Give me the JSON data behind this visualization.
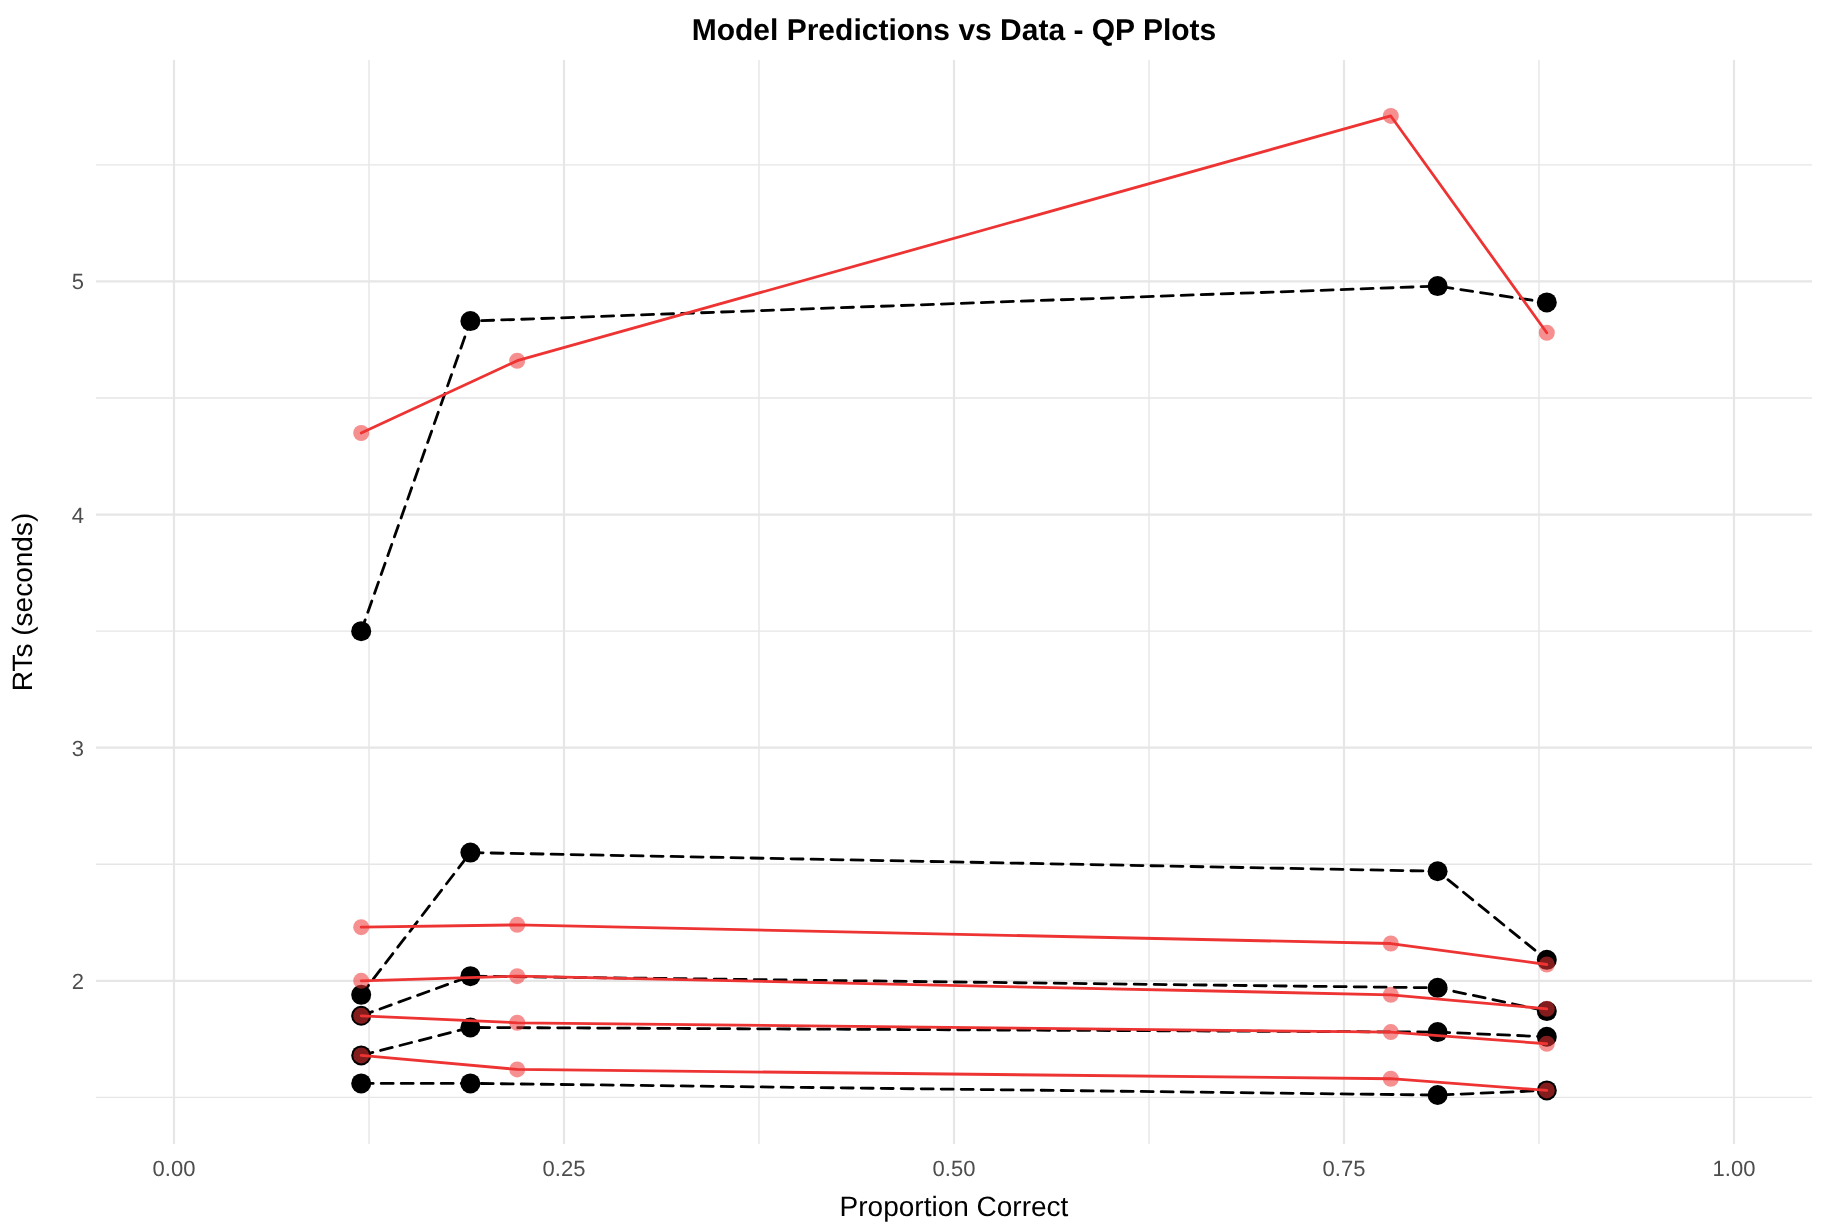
{
  "chart_data": {
    "type": "line",
    "title": "Model Predictions vs Data - QP Plots",
    "xlabel": "Proportion Correct",
    "ylabel": "RTs (seconds)",
    "xlim": [
      -0.05,
      1.05
    ],
    "xticks": [
      {
        "value": 0,
        "label": "0.00"
      },
      {
        "value": 0.125,
        "label": null
      },
      {
        "value": 0.25,
        "label": "0.25"
      },
      {
        "value": 0.375,
        "label": null
      },
      {
        "value": 0.5,
        "label": "0.50"
      },
      {
        "value": 0.625,
        "label": null
      },
      {
        "value": 0.75,
        "label": "0.75"
      },
      {
        "value": 0.875,
        "label": null
      },
      {
        "value": 1,
        "label": "1.00"
      }
    ],
    "ylim": [
      1.3,
      5.95
    ],
    "yticks": [
      {
        "value": 1.5,
        "label": null
      },
      2,
      {
        "value": 2.5,
        "label": null
      },
      3,
      {
        "value": 3.5,
        "label": null
      },
      4,
      {
        "value": 4.5,
        "label": null
      },
      5,
      {
        "value": 5.5,
        "label": null
      }
    ],
    "grid": true,
    "marker": "circle",
    "series": [
      {
        "color": "#000000",
        "line_style": "dashed",
        "x": [
          0.12,
          0.19,
          0.81,
          0.88
        ],
        "values": [
          1.56,
          1.56,
          1.51,
          1.53
        ]
      },
      {
        "color": "#000000",
        "line_style": "dashed",
        "x": [
          0.12,
          0.19,
          0.81,
          0.88
        ],
        "values": [
          1.68,
          1.8,
          1.78,
          1.76
        ]
      },
      {
        "color": "#000000",
        "line_style": "dashed",
        "x": [
          0.12,
          0.19,
          0.81,
          0.88
        ],
        "values": [
          1.85,
          2.02,
          1.97,
          1.87
        ]
      },
      {
        "color": "#000000",
        "line_style": "dashed",
        "x": [
          0.12,
          0.19,
          0.81,
          0.88
        ],
        "values": [
          1.94,
          2.55,
          2.47,
          2.09
        ]
      },
      {
        "color": "#000000",
        "line_style": "dashed",
        "x": [
          0.12,
          0.19,
          0.81,
          0.88
        ],
        "values": [
          3.5,
          4.83,
          4.98,
          4.91
        ]
      },
      {
        "color": "#ee3333",
        "line_style": "solid",
        "x": [
          0.12,
          0.22,
          0.78,
          0.88
        ],
        "values": [
          1.68,
          1.62,
          1.58,
          1.53
        ]
      },
      {
        "color": "#ee3333",
        "line_style": "solid",
        "x": [
          0.12,
          0.22,
          0.78,
          0.88
        ],
        "values": [
          1.85,
          1.82,
          1.78,
          1.73
        ]
      },
      {
        "color": "#ee3333",
        "line_style": "solid",
        "x": [
          0.12,
          0.22,
          0.78,
          0.88
        ],
        "values": [
          2.0,
          2.02,
          1.94,
          1.88
        ]
      },
      {
        "color": "#ee3333",
        "line_style": "solid",
        "x": [
          0.12,
          0.22,
          0.78,
          0.88
        ],
        "values": [
          2.23,
          2.24,
          2.16,
          2.07
        ]
      },
      {
        "color": "#ee3333",
        "line_style": "solid",
        "x": [
          0.12,
          0.22,
          0.78,
          0.88
        ],
        "values": [
          4.35,
          4.66,
          5.71,
          4.78
        ]
      }
    ]
  }
}
